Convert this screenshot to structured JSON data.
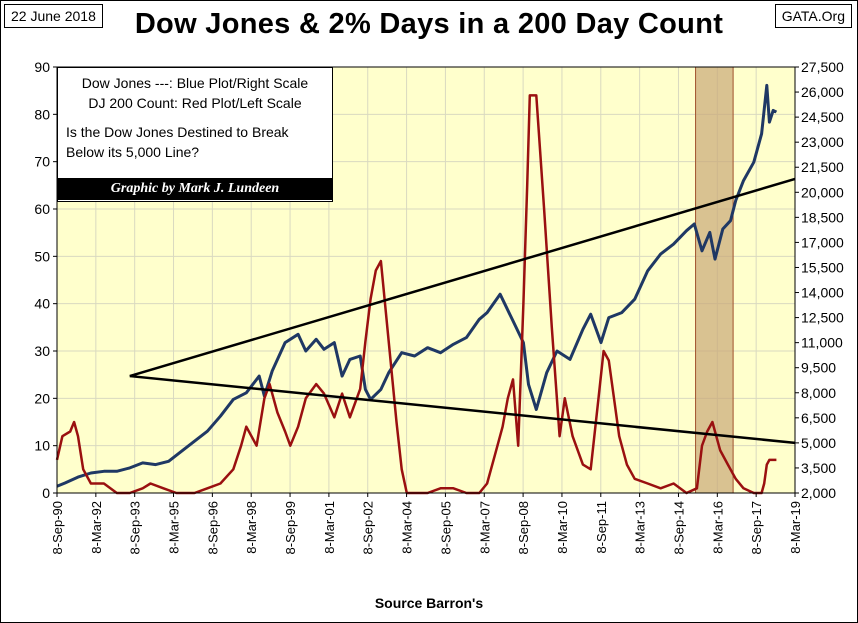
{
  "header": {
    "date": "22 June 2018",
    "source_site": "GATA.Org",
    "title": "Dow Jones & 2% Days in a 200 Day Count"
  },
  "legend": {
    "line1": "Dow Jones ---: Blue Plot/Right Scale",
    "line2": "DJ 200 Count: Red Plot/Left Scale",
    "question_line1": "Is the Dow Jones Destined to Break",
    "question_line2": "Below its 5,000 Line?",
    "credit": "Graphic by Mark J. Lundeen"
  },
  "footer": {
    "xlabel": "Source Barron's"
  },
  "colors": {
    "plot_bg": "#FFFFCC",
    "grid": "#D9D9C0",
    "dow_line": "#1F3864",
    "count_line": "#9A1010",
    "trend_line": "#000000",
    "shade": "#C9A878"
  },
  "chart_data": {
    "type": "line",
    "title": "Dow Jones & 2% Days in a 200 Day Count",
    "xlabel": "Source Barron's",
    "x_ticks": [
      "8-Sep-90",
      "8-Mar-92",
      "8-Sep-93",
      "8-Mar-95",
      "8-Sep-96",
      "8-Mar-98",
      "8-Sep-99",
      "8-Mar-01",
      "8-Sep-02",
      "8-Mar-04",
      "8-Sep-05",
      "8-Mar-07",
      "8-Sep-08",
      "8-Mar-10",
      "8-Sep-11",
      "8-Mar-13",
      "8-Sep-14",
      "8-Mar-16",
      "8-Sep-17",
      "8-Mar-19"
    ],
    "x_range": [
      1990.69,
      2019.19
    ],
    "y_left": {
      "label": "DJ 200 Count",
      "range": [
        0,
        90
      ],
      "ticks": [
        0,
        10,
        20,
        30,
        40,
        50,
        60,
        70,
        80,
        90
      ]
    },
    "y_right": {
      "label": "Dow Jones",
      "range": [
        2000,
        27500
      ],
      "ticks": [
        2000,
        3500,
        5000,
        6500,
        8000,
        9500,
        11000,
        12500,
        14000,
        15500,
        17000,
        18500,
        20000,
        21500,
        23000,
        24500,
        26000,
        27500
      ],
      "tick_labels": [
        "2,000",
        "3,500",
        "5,000",
        "6,500",
        "8,000",
        "9,500",
        "11,000",
        "12,500",
        "14,000",
        "15,500",
        "17,000",
        "18,500",
        "20,000",
        "21,500",
        "23,000",
        "24,500",
        "26,000",
        "27,500"
      ]
    },
    "series": [
      {
        "name": "Dow Jones",
        "axis": "right",
        "points": [
          [
            1990.69,
            2400
          ],
          [
            1991.0,
            2600
          ],
          [
            1991.5,
            2950
          ],
          [
            1992.0,
            3200
          ],
          [
            1992.5,
            3300
          ],
          [
            1993.0,
            3300
          ],
          [
            1993.5,
            3500
          ],
          [
            1994.0,
            3800
          ],
          [
            1994.5,
            3700
          ],
          [
            1995.0,
            3900
          ],
          [
            1995.5,
            4500
          ],
          [
            1996.0,
            5100
          ],
          [
            1996.5,
            5700
          ],
          [
            1997.0,
            6600
          ],
          [
            1997.5,
            7600
          ],
          [
            1998.0,
            8000
          ],
          [
            1998.5,
            9000
          ],
          [
            1998.7,
            7800
          ],
          [
            1999.0,
            9300
          ],
          [
            1999.5,
            11000
          ],
          [
            2000.0,
            11500
          ],
          [
            2000.3,
            10500
          ],
          [
            2000.7,
            11200
          ],
          [
            2001.0,
            10600
          ],
          [
            2001.4,
            11000
          ],
          [
            2001.7,
            9000
          ],
          [
            2002.0,
            10000
          ],
          [
            2002.4,
            10200
          ],
          [
            2002.6,
            8200
          ],
          [
            2002.8,
            7600
          ],
          [
            2003.2,
            8200
          ],
          [
            2003.5,
            9200
          ],
          [
            2004.0,
            10400
          ],
          [
            2004.5,
            10200
          ],
          [
            2005.0,
            10700
          ],
          [
            2005.5,
            10400
          ],
          [
            2006.0,
            10900
          ],
          [
            2006.5,
            11300
          ],
          [
            2007.0,
            12400
          ],
          [
            2007.3,
            12800
          ],
          [
            2007.8,
            13900
          ],
          [
            2008.3,
            12300
          ],
          [
            2008.7,
            11000
          ],
          [
            2008.9,
            8500
          ],
          [
            2009.2,
            7000
          ],
          [
            2009.6,
            9200
          ],
          [
            2010.0,
            10500
          ],
          [
            2010.5,
            10000
          ],
          [
            2011.0,
            11800
          ],
          [
            2011.3,
            12700
          ],
          [
            2011.7,
            11000
          ],
          [
            2012.0,
            12500
          ],
          [
            2012.5,
            12800
          ],
          [
            2013.0,
            13600
          ],
          [
            2013.5,
            15300
          ],
          [
            2014.0,
            16300
          ],
          [
            2014.5,
            16900
          ],
          [
            2015.0,
            17700
          ],
          [
            2015.3,
            18100
          ],
          [
            2015.6,
            16500
          ],
          [
            2015.9,
            17600
          ],
          [
            2016.1,
            16000
          ],
          [
            2016.4,
            17800
          ],
          [
            2016.7,
            18300
          ],
          [
            2016.9,
            19500
          ],
          [
            2017.2,
            20700
          ],
          [
            2017.6,
            21800
          ],
          [
            2017.9,
            23500
          ],
          [
            2018.1,
            26400
          ],
          [
            2018.2,
            24200
          ],
          [
            2018.35,
            24900
          ],
          [
            2018.47,
            24800
          ]
        ]
      },
      {
        "name": "DJ 200 Count",
        "axis": "left",
        "points": [
          [
            1990.69,
            7
          ],
          [
            1990.9,
            12
          ],
          [
            1991.2,
            13
          ],
          [
            1991.35,
            15
          ],
          [
            1991.5,
            12
          ],
          [
            1991.7,
            5
          ],
          [
            1992.0,
            2
          ],
          [
            1992.5,
            2
          ],
          [
            1993.0,
            0
          ],
          [
            1993.5,
            0
          ],
          [
            1994.0,
            1
          ],
          [
            1994.3,
            2
          ],
          [
            1994.8,
            1
          ],
          [
            1995.3,
            0
          ],
          [
            1996.0,
            0
          ],
          [
            1996.5,
            1
          ],
          [
            1997.0,
            2
          ],
          [
            1997.5,
            5
          ],
          [
            1997.8,
            10
          ],
          [
            1998.0,
            14
          ],
          [
            1998.4,
            10
          ],
          [
            1998.7,
            20
          ],
          [
            1998.9,
            23
          ],
          [
            1999.2,
            17
          ],
          [
            1999.5,
            13
          ],
          [
            1999.7,
            10
          ],
          [
            2000.0,
            14
          ],
          [
            2000.3,
            20
          ],
          [
            2000.7,
            23
          ],
          [
            2001.0,
            21
          ],
          [
            2001.4,
            16
          ],
          [
            2001.7,
            21
          ],
          [
            2002.0,
            16
          ],
          [
            2002.4,
            22
          ],
          [
            2002.6,
            32
          ],
          [
            2002.8,
            41
          ],
          [
            2003.0,
            47
          ],
          [
            2003.2,
            49
          ],
          [
            2003.5,
            32
          ],
          [
            2003.8,
            15
          ],
          [
            2004.0,
            5
          ],
          [
            2004.2,
            0
          ],
          [
            2005.0,
            0
          ],
          [
            2005.5,
            1
          ],
          [
            2006.0,
            1
          ],
          [
            2006.5,
            0
          ],
          [
            2007.0,
            0
          ],
          [
            2007.3,
            2
          ],
          [
            2007.6,
            8
          ],
          [
            2007.9,
            14
          ],
          [
            2008.1,
            20
          ],
          [
            2008.3,
            24
          ],
          [
            2008.5,
            10
          ],
          [
            2008.7,
            40
          ],
          [
            2008.85,
            65
          ],
          [
            2008.95,
            84
          ],
          [
            2009.2,
            84
          ],
          [
            2009.5,
            60
          ],
          [
            2009.8,
            35
          ],
          [
            2010.1,
            12
          ],
          [
            2010.3,
            20
          ],
          [
            2010.6,
            12
          ],
          [
            2011.0,
            6
          ],
          [
            2011.3,
            5
          ],
          [
            2011.6,
            20
          ],
          [
            2011.8,
            30
          ],
          [
            2012.0,
            28
          ],
          [
            2012.4,
            12
          ],
          [
            2012.7,
            6
          ],
          [
            2013.0,
            3
          ],
          [
            2013.5,
            2
          ],
          [
            2014.0,
            1
          ],
          [
            2014.5,
            2
          ],
          [
            2015.0,
            0
          ],
          [
            2015.4,
            1
          ],
          [
            2015.6,
            10
          ],
          [
            2015.8,
            13
          ],
          [
            2016.0,
            15
          ],
          [
            2016.3,
            9
          ],
          [
            2016.6,
            6
          ],
          [
            2016.9,
            3
          ],
          [
            2017.2,
            1
          ],
          [
            2017.6,
            0
          ],
          [
            2017.9,
            0
          ],
          [
            2018.0,
            2
          ],
          [
            2018.1,
            6
          ],
          [
            2018.2,
            7
          ],
          [
            2018.47,
            7
          ]
        ]
      }
    ],
    "trend_lines": [
      {
        "name": "upper trend",
        "axis": "right",
        "from": [
          1993.5,
          9000
        ],
        "to": [
          2019.19,
          20800
        ]
      },
      {
        "name": "lower trend",
        "axis": "right",
        "from": [
          1993.5,
          9000
        ],
        "to": [
          2019.19,
          5000
        ]
      }
    ],
    "shaded_region": {
      "x_range": [
        2015.35,
        2016.8
      ]
    }
  }
}
